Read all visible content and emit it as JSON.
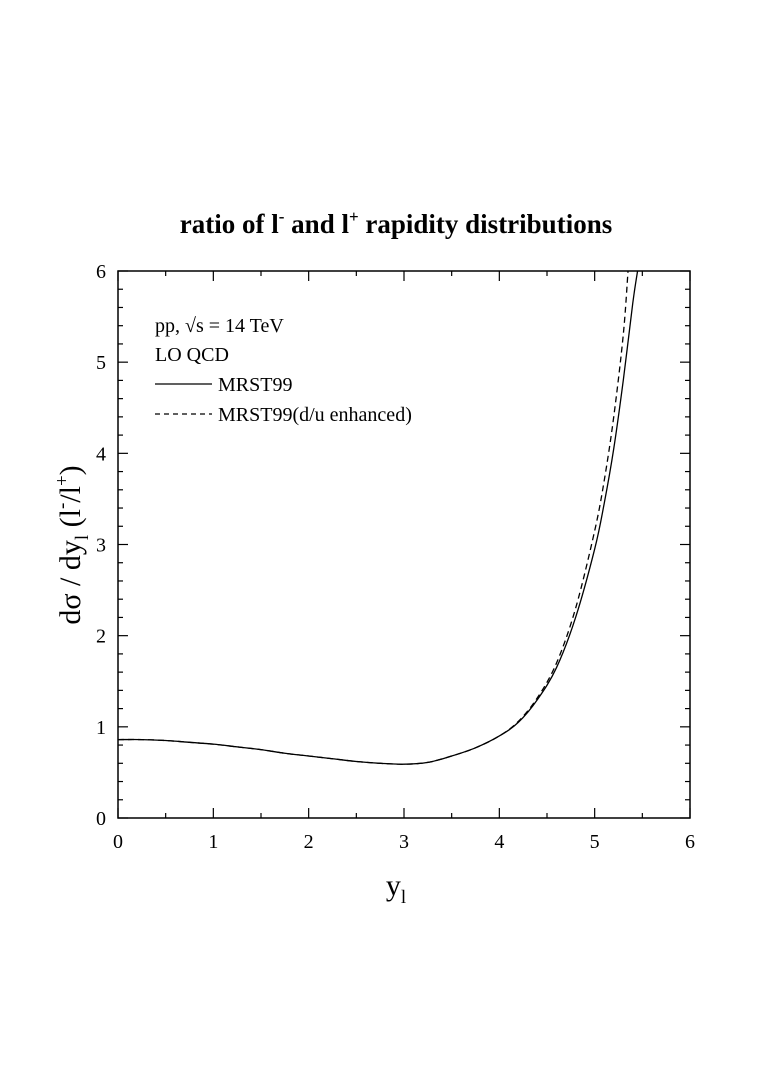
{
  "chart_data": {
    "type": "line",
    "title": {
      "prefix": "ratio of l",
      "sup1": "-",
      "middle": " and l",
      "sup2": "+",
      "suffix": " rapidity distributions"
    },
    "xlabel": {
      "main": "y",
      "sub": "l"
    },
    "ylabel": {
      "part1": "dσ / dy",
      "sub": "l",
      "part2": " (l",
      "sup1": "-",
      "part3": "/l",
      "sup2": "+",
      "part4": ")"
    },
    "xlim": [
      0,
      6
    ],
    "ylim": [
      0,
      6
    ],
    "xticks": [
      0,
      1,
      2,
      3,
      4,
      5,
      6
    ],
    "yticks": [
      0,
      1,
      2,
      3,
      4,
      5,
      6
    ],
    "xtick_labels": [
      "0",
      "1",
      "2",
      "3",
      "4",
      "5",
      "6"
    ],
    "ytick_labels": [
      "0",
      "1",
      "2",
      "3",
      "4",
      "5",
      "6"
    ],
    "grid": false,
    "annotations": [
      "pp, √s = 14 TeV",
      "LO QCD"
    ],
    "series": [
      {
        "name": "MRST99",
        "style": "solid",
        "x": [
          0,
          0.25,
          0.5,
          0.75,
          1.0,
          1.25,
          1.5,
          1.75,
          2.0,
          2.25,
          2.5,
          2.75,
          3.0,
          3.25,
          3.5,
          3.75,
          4.0,
          4.2,
          4.4,
          4.6,
          4.8,
          5.0,
          5.1,
          5.2,
          5.3,
          5.4,
          5.45
        ],
        "y": [
          0.86,
          0.86,
          0.85,
          0.83,
          0.81,
          0.78,
          0.75,
          0.71,
          0.68,
          0.65,
          0.62,
          0.6,
          0.59,
          0.61,
          0.68,
          0.77,
          0.9,
          1.05,
          1.3,
          1.65,
          2.2,
          2.95,
          3.45,
          4.05,
          4.8,
          5.65,
          6.0
        ]
      },
      {
        "name": "MRST99(d/u enhanced)",
        "style": "dashed",
        "x": [
          0,
          0.25,
          0.5,
          0.75,
          1.0,
          1.25,
          1.5,
          1.75,
          2.0,
          2.25,
          2.5,
          2.75,
          3.0,
          3.25,
          3.5,
          3.75,
          4.0,
          4.2,
          4.4,
          4.6,
          4.8,
          5.0,
          5.1,
          5.2,
          5.3,
          5.35
        ],
        "y": [
          0.86,
          0.86,
          0.85,
          0.83,
          0.81,
          0.78,
          0.75,
          0.71,
          0.68,
          0.65,
          0.62,
          0.6,
          0.59,
          0.61,
          0.68,
          0.77,
          0.9,
          1.06,
          1.32,
          1.7,
          2.3,
          3.15,
          3.7,
          4.4,
          5.3,
          6.0
        ]
      }
    ],
    "legend_position": "top-left"
  }
}
